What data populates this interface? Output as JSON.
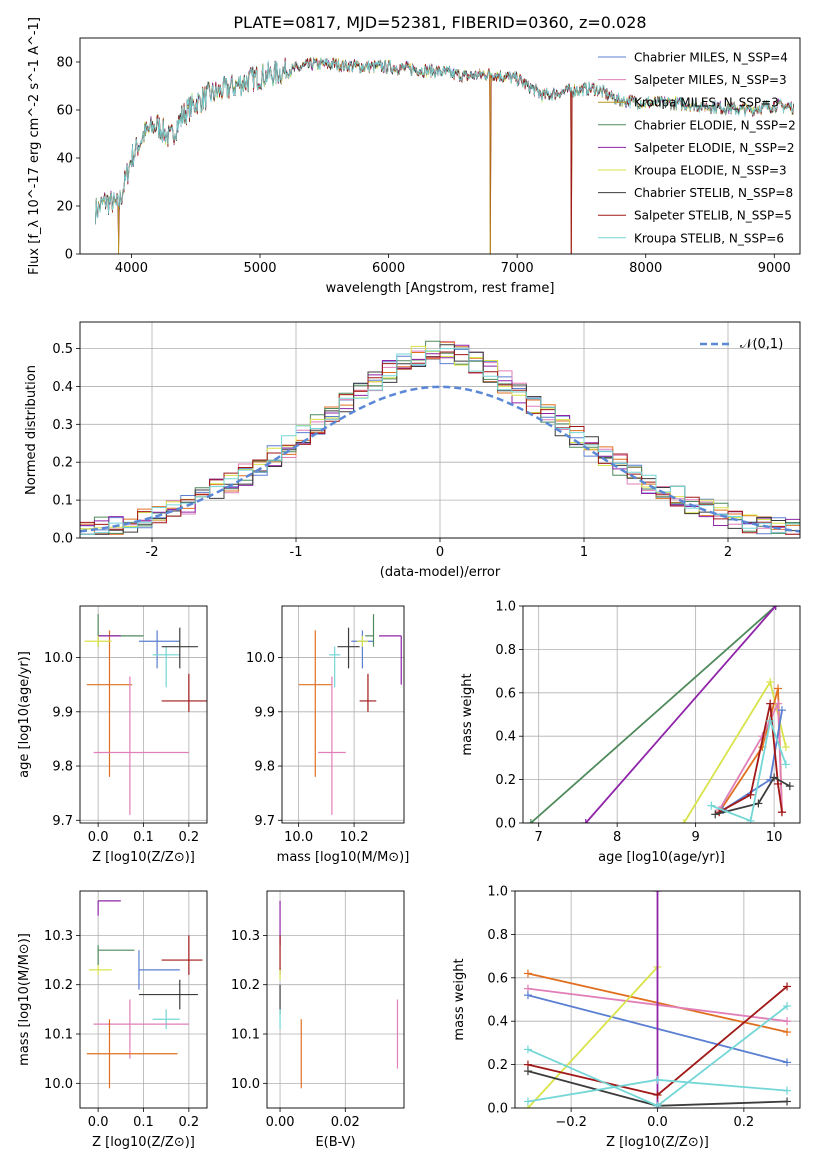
{
  "figure_title": "PLATE=0817, MJD=52381, FIBERID=0360, z=0.028",
  "colors": {
    "Chabrier MILES": "#5b7fd1",
    "Salpeter MILES": "#e07fb8",
    "Kroupa MILES": "#b8961f",
    "Chabrier ELODIE": "#4f8a5c",
    "Salpeter ELODIE": "#8f24a8",
    "Kroupa ELODIE": "#d9e34a",
    "Chabrier STELIB": "#3c3c3c",
    "Salpeter STELIB": "#a01818",
    "Kroupa STELIB": "#74d6d6",
    "orange": "#e07020",
    "normal": "#5b88d6"
  },
  "chart_data": [
    {
      "id": "spectrum",
      "type": "line",
      "title": "PLATE=0817, MJD=52381, FIBERID=0360, z=0.028",
      "xlabel": "wavelength [Angstrom, rest frame]",
      "ylabel": "Flux [f_λ 10^-17 erg cm^-2 s^-1 A^-1]",
      "xlim": [
        3600,
        9200
      ],
      "ylim": [
        0,
        90
      ],
      "xticks": [
        4000,
        5000,
        6000,
        7000,
        8000,
        9000
      ],
      "yticks": [
        0,
        20,
        40,
        60,
        80
      ],
      "legend": "top-right",
      "legend_entries": [
        "Chabrier MILES, N_SSP=4",
        "Salpeter MILES, N_SSP=3",
        "Kroupa MILES, N_SSP=3",
        "Chabrier ELODIE, N_SSP=2",
        "Salpeter ELODIE, N_SSP=2",
        "Kroupa ELODIE, N_SSP=3",
        "Chabrier STELIB, N_SSP=8",
        "Salpeter STELIB, N_SSP=5",
        "Kroupa STELIB, N_SSP=6"
      ],
      "continuum": {
        "x": [
          3720,
          3800,
          3900,
          4000,
          4100,
          4200,
          4300,
          4400,
          4500,
          4600,
          4800,
          5000,
          5200,
          5400,
          5600,
          5800,
          6000,
          6200,
          6400,
          6600,
          6800,
          7000,
          7200,
          7400,
          7600,
          7800,
          8000,
          8200,
          8400,
          8600,
          8800,
          9000,
          9150
        ],
        "y": [
          18,
          22,
          20,
          40,
          50,
          54,
          48,
          58,
          63,
          66,
          70,
          74,
          76,
          79,
          79,
          78,
          78,
          77,
          76,
          74,
          75,
          73,
          66,
          68,
          69,
          64,
          63,
          63,
          62,
          61,
          60,
          62,
          61
        ]
      },
      "dips": [
        {
          "x": 3900,
          "y": 0
        },
        {
          "x": 6790,
          "y": 0
        },
        {
          "x": 7420,
          "y": 0
        }
      ]
    },
    {
      "id": "residuals",
      "type": "histogram",
      "xlabel": "(data-model)/error",
      "ylabel": "Normed distribution",
      "xlim": [
        -2.5,
        2.5
      ],
      "ylim": [
        0,
        0.57
      ],
      "xticks": [
        -2,
        -1,
        0,
        1,
        2
      ],
      "yticks": [
        0.0,
        0.1,
        0.2,
        0.3,
        0.4,
        0.5
      ],
      "grid": true,
      "legend": "top-right",
      "legend_entries": [
        "𝒩(0,1)"
      ],
      "bin_width": 0.1,
      "bin_start": -2.5,
      "normal": {
        "mean": 0,
        "sigma": 1
      }
    },
    {
      "id": "age_vs_Z",
      "type": "errorbar",
      "xlabel": "Z [log10(Z/Z⊙)]",
      "ylabel": "age  [log10(age/yr)]",
      "xlim": [
        -0.04,
        0.24
      ],
      "ylim": [
        9.695,
        10.095
      ],
      "xticks": [
        0.0,
        0.1,
        0.2
      ],
      "xticklabels": [
        "0.0",
        "0.1",
        "0.2"
      ],
      "yticks": [
        9.7,
        9.8,
        9.9,
        10.0
      ],
      "yticklabels": [
        "9.7",
        "9.8",
        "9.9",
        "10.0"
      ],
      "grid": true,
      "points": [
        {
          "series": "orange",
          "x": 0.025,
          "xerr": [
            0.05,
            0.05
          ],
          "y": 9.95,
          "yerr": [
            0.17,
            0.1
          ]
        },
        {
          "series": "Salpeter MILES",
          "x": 0.07,
          "xerr": [
            0.08,
            0.13
          ],
          "y": 9.825,
          "yerr": [
            0.115,
            0.14
          ]
        },
        {
          "series": "Chabrier MILES",
          "x": 0.13,
          "xerr": [
            0.04,
            0.05
          ],
          "y": 10.03,
          "yerr": [
            0.05,
            0.02
          ]
        },
        {
          "series": "Kroupa STELIB",
          "x": 0.15,
          "xerr": [
            0.03,
            0.03
          ],
          "y": 10.005,
          "yerr": [
            0.06,
            0.015
          ]
        },
        {
          "series": "Chabrier STELIB",
          "x": 0.18,
          "xerr": [
            0.04,
            0.04
          ],
          "y": 10.02,
          "yerr": [
            0.04,
            0.035
          ]
        },
        {
          "series": "Salpeter STELIB",
          "x": 0.2,
          "xerr": [
            0.06,
            0.04
          ],
          "y": 9.92,
          "yerr": [
            0.02,
            0.05
          ]
        },
        {
          "series": "Chabrier ELODIE",
          "x": 0.0,
          "xerr": [
            0.0,
            0.1
          ],
          "y": 10.04,
          "yerr": [
            0.02,
            0.04
          ]
        },
        {
          "series": "Salpeter ELODIE",
          "x": 0.0,
          "xerr": [
            0.0,
            0.05
          ],
          "y": 10.04,
          "yerr": [
            0.0,
            0.0
          ]
        },
        {
          "series": "Kroupa ELODIE",
          "x": 0.0,
          "xerr": [
            0.03,
            0.03
          ],
          "y": 10.03,
          "yerr": [
            0.01,
            0.01
          ]
        }
      ]
    },
    {
      "id": "age_vs_mass",
      "type": "errorbar",
      "xlabel": "mass [log10(M/M⊙)]",
      "ylabel": "",
      "xlim": [
        9.94,
        10.38
      ],
      "ylim": [
        9.695,
        10.095
      ],
      "xticks": [
        10.0,
        10.2
      ],
      "xticklabels": [
        "10.0",
        "10.2"
      ],
      "yticks": [
        9.7,
        9.8,
        9.9,
        10.0
      ],
      "yticklabels": [
        "9.7",
        "9.8",
        "9.9",
        "10.0"
      ],
      "grid": true,
      "points": [
        {
          "series": "orange",
          "x": 10.06,
          "xerr": [
            0.06,
            0.06
          ],
          "y": 9.95,
          "yerr": [
            0.17,
            0.1
          ]
        },
        {
          "series": "Salpeter MILES",
          "x": 10.12,
          "xerr": [
            0.05,
            0.05
          ],
          "y": 9.825,
          "yerr": [
            0.115,
            0.14
          ]
        },
        {
          "series": "Kroupa STELIB",
          "x": 10.13,
          "xerr": [
            0.02,
            0.02
          ],
          "y": 10.005,
          "yerr": [
            0.06,
            0.015
          ]
        },
        {
          "series": "Chabrier MILES",
          "x": 10.23,
          "xerr": [
            0.04,
            0.04
          ],
          "y": 10.03,
          "yerr": [
            0.05,
            0.02
          ]
        },
        {
          "series": "Chabrier STELIB",
          "x": 10.18,
          "xerr": [
            0.04,
            0.04
          ],
          "y": 10.02,
          "yerr": [
            0.04,
            0.035
          ]
        },
        {
          "series": "Salpeter STELIB",
          "x": 10.25,
          "xerr": [
            0.03,
            0.03
          ],
          "y": 9.92,
          "yerr": [
            0.02,
            0.05
          ]
        },
        {
          "series": "Chabrier ELODIE",
          "x": 10.27,
          "xerr": [
            0.03,
            0.0
          ],
          "y": 10.04,
          "yerr": [
            0.02,
            0.04
          ]
        },
        {
          "series": "Salpeter ELODIE",
          "x": 10.37,
          "xerr": [
            0.08,
            0.0
          ],
          "y": 10.04,
          "yerr": [
            0.09,
            0.0
          ]
        },
        {
          "series": "Kroupa ELODIE",
          "x": 10.23,
          "xerr": [
            0.02,
            0.02
          ],
          "y": 10.03,
          "yerr": [
            0.01,
            0.01
          ]
        }
      ]
    },
    {
      "id": "weight_vs_age",
      "type": "line",
      "xlabel": "age  [log10(age/yr)]",
      "ylabel": "mass weight",
      "xlim": [
        6.8,
        10.33
      ],
      "ylim": [
        0,
        1.0
      ],
      "xticks": [
        7,
        8,
        9,
        10
      ],
      "xticklabels": [
        "7",
        "8",
        "9",
        "10"
      ],
      "yticks": [
        0.0,
        0.2,
        0.4,
        0.6,
        0.8,
        1.0
      ],
      "yticklabels": [
        "0.0",
        "0.2",
        "0.4",
        "0.6",
        "0.8",
        "1.0"
      ],
      "grid": true,
      "series": [
        {
          "name": "Chabrier ELODIE",
          "x": [
            6.9,
            10.02
          ],
          "y": [
            0.0,
            1.0
          ]
        },
        {
          "name": "Salpeter ELODIE",
          "x": [
            7.6,
            10.02
          ],
          "y": [
            0.0,
            1.0
          ]
        },
        {
          "name": "Kroupa ELODIE",
          "x": [
            8.85,
            9.95,
            10.15
          ],
          "y": [
            0.0,
            0.65,
            0.35
          ]
        },
        {
          "name": "orange",
          "x": [
            9.3,
            9.85,
            10.05,
            10.1
          ],
          "y": [
            0.05,
            0.35,
            0.62,
            0.05
          ]
        },
        {
          "name": "Salpeter MILES",
          "x": [
            9.3,
            9.85,
            10.05,
            10.1
          ],
          "y": [
            0.06,
            0.4,
            0.55,
            0.05
          ]
        },
        {
          "name": "Chabrier MILES",
          "x": [
            9.35,
            9.95,
            10.1
          ],
          "y": [
            0.06,
            0.2,
            0.52
          ]
        },
        {
          "name": "Salpeter STELIB",
          "x": [
            9.3,
            9.7,
            9.95,
            10.05,
            10.1
          ],
          "y": [
            0.05,
            0.13,
            0.55,
            0.18,
            0.05
          ]
        },
        {
          "name": "Chabrier STELIB",
          "x": [
            9.25,
            9.8,
            10.0,
            10.2
          ],
          "y": [
            0.04,
            0.09,
            0.21,
            0.17
          ]
        },
        {
          "name": "Kroupa STELIB",
          "x": [
            9.2,
            9.7,
            9.95,
            10.15
          ],
          "y": [
            0.08,
            0.01,
            0.47,
            0.27
          ]
        }
      ]
    },
    {
      "id": "mass_vs_Z",
      "type": "errorbar",
      "xlabel": "Z [log10(Z/Z⊙)]",
      "ylabel": "mass [log10(M/M⊙)]",
      "xlim": [
        -0.04,
        0.24
      ],
      "ylim": [
        9.95,
        10.39
      ],
      "xticks": [
        0.0,
        0.1,
        0.2
      ],
      "xticklabels": [
        "0.0",
        "0.1",
        "0.2"
      ],
      "yticks": [
        10.0,
        10.1,
        10.2,
        10.3
      ],
      "yticklabels": [
        "10.0",
        "10.1",
        "10.2",
        "10.3"
      ],
      "grid": true,
      "points": [
        {
          "series": "Salpeter ELODIE",
          "x": 0.0,
          "xerr": [
            0.0,
            0.05
          ],
          "y": 10.37,
          "yerr": [
            0.03,
            0.0
          ]
        },
        {
          "series": "Chabrier ELODIE",
          "x": 0.0,
          "xerr": [
            0.0,
            0.08
          ],
          "y": 10.27,
          "yerr": [
            0.03,
            0.01
          ]
        },
        {
          "series": "Kroupa ELODIE",
          "x": 0.0,
          "xerr": [
            0.02,
            0.03
          ],
          "y": 10.23,
          "yerr": [
            0.01,
            0.01
          ]
        },
        {
          "series": "Salpeter STELIB",
          "x": 0.2,
          "xerr": [
            0.06,
            0.03
          ],
          "y": 10.25,
          "yerr": [
            0.03,
            0.05
          ]
        },
        {
          "series": "Chabrier MILES",
          "x": 0.09,
          "xerr": [
            0.0,
            0.09
          ],
          "y": 10.23,
          "yerr": [
            0.04,
            0.04
          ]
        },
        {
          "series": "Chabrier STELIB",
          "x": 0.18,
          "xerr": [
            0.09,
            0.04
          ],
          "y": 10.18,
          "yerr": [
            0.03,
            0.03
          ]
        },
        {
          "series": "Kroupa STELIB",
          "x": 0.15,
          "xerr": [
            0.03,
            0.03
          ],
          "y": 10.13,
          "yerr": [
            0.02,
            0.02
          ]
        },
        {
          "series": "Salpeter MILES",
          "x": 0.07,
          "xerr": [
            0.08,
            0.13
          ],
          "y": 10.12,
          "yerr": [
            0.07,
            0.05
          ]
        },
        {
          "series": "orange",
          "x": 0.025,
          "xerr": [
            0.05,
            0.15
          ],
          "y": 10.06,
          "yerr": [
            0.07,
            0.07
          ]
        }
      ]
    },
    {
      "id": "mass_vs_ebv",
      "type": "errorbar",
      "xlabel": "E(B-V)",
      "ylabel": "",
      "xlim": [
        -0.004,
        0.038
      ],
      "ylim": [
        9.95,
        10.39
      ],
      "xticks": [
        0.0,
        0.02
      ],
      "xticklabels": [
        "0.00",
        "0.02"
      ],
      "yticks": [
        10.0,
        10.1,
        10.2,
        10.3
      ],
      "yticklabels": [
        "10.0",
        "10.1",
        "10.2",
        "10.3"
      ],
      "grid": true,
      "points": [
        {
          "series": "Salpeter ELODIE",
          "x": 0.0,
          "xerr": [
            0.0,
            0.0
          ],
          "y": 10.33,
          "yerr": [
            0.05,
            0.04
          ]
        },
        {
          "series": "Salpeter STELIB",
          "x": 0.0,
          "xerr": [
            0.0,
            0.0
          ],
          "y": 10.25,
          "yerr": [
            0.03,
            0.05
          ]
        },
        {
          "series": "Kroupa ELODIE",
          "x": 0.0,
          "xerr": [
            0.0,
            0.0
          ],
          "y": 10.22,
          "yerr": [
            0.01,
            0.01
          ]
        },
        {
          "series": "Chabrier STELIB",
          "x": 0.0,
          "xerr": [
            0.0,
            0.0
          ],
          "y": 10.17,
          "yerr": [
            0.03,
            0.03
          ]
        },
        {
          "series": "Kroupa STELIB",
          "x": 0.0,
          "xerr": [
            0.0,
            0.0
          ],
          "y": 10.13,
          "yerr": [
            0.02,
            0.02
          ]
        },
        {
          "series": "orange",
          "x": 0.0065,
          "xerr": [
            0.0,
            0.0
          ],
          "y": 10.06,
          "yerr": [
            0.07,
            0.07
          ]
        },
        {
          "series": "Salpeter MILES",
          "x": 0.036,
          "xerr": [
            0.0,
            0.0
          ],
          "y": 10.1,
          "yerr": [
            0.07,
            0.07
          ]
        }
      ]
    },
    {
      "id": "weight_vs_Z",
      "type": "line",
      "xlabel": "Z [log10(Z/Z⊙)]",
      "ylabel": "mass weight",
      "xlim": [
        -0.33,
        0.33
      ],
      "ylim": [
        0,
        1.0
      ],
      "xticks": [
        -0.2,
        0.0,
        0.2
      ],
      "xticklabels": [
        "−0.2",
        "0.0",
        "0.2"
      ],
      "yticks": [
        0.0,
        0.2,
        0.4,
        0.6,
        0.8,
        1.0
      ],
      "yticklabels": [
        "0.0",
        "0.2",
        "0.4",
        "0.6",
        "0.8",
        "1.0"
      ],
      "grid": true,
      "series": [
        {
          "name": "orange",
          "x": [
            -0.3,
            0.3
          ],
          "y": [
            0.62,
            0.35
          ]
        },
        {
          "name": "Salpeter MILES",
          "x": [
            -0.3,
            0.3
          ],
          "y": [
            0.55,
            0.4
          ]
        },
        {
          "name": "Chabrier MILES",
          "x": [
            -0.3,
            0.3
          ],
          "y": [
            0.52,
            0.21
          ]
        },
        {
          "name": "Kroupa ELODIE",
          "x": [
            -0.3,
            0.0
          ],
          "y": [
            0.0,
            0.65
          ]
        },
        {
          "name": "Salpeter ELODIE",
          "x": [
            0.0,
            0.0
          ],
          "y": [
            0.0,
            1.0
          ]
        },
        {
          "name": "Salpeter STELIB",
          "x": [
            -0.3,
            0.0,
            0.3
          ],
          "y": [
            0.2,
            0.06,
            0.56
          ]
        },
        {
          "name": "Chabrier STELIB",
          "x": [
            -0.3,
            0.0,
            0.3
          ],
          "y": [
            0.17,
            0.01,
            0.03
          ]
        },
        {
          "name": "Kroupa STELIB",
          "x": [
            -0.3,
            0.0,
            0.3
          ],
          "y": [
            0.03,
            0.13,
            0.08
          ]
        },
        {
          "name": "Kroupa STELIB",
          "x": [
            -0.3,
            0.0,
            0.3
          ],
          "y": [
            0.27,
            0.01,
            0.47
          ]
        }
      ]
    }
  ]
}
